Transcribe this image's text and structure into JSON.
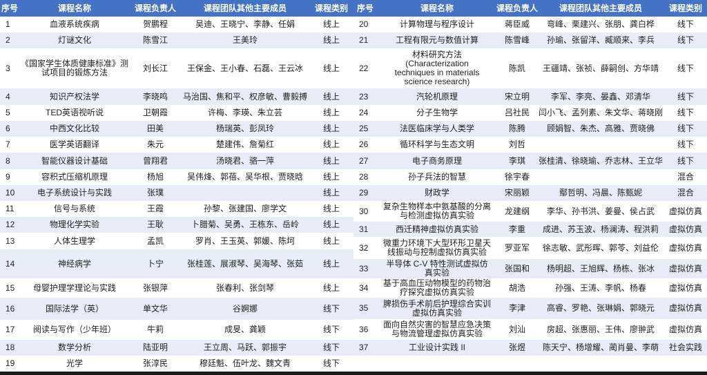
{
  "headers": [
    "序号",
    "课程名称",
    "课程负责人",
    "课程团队其他主要成员",
    "课程类别"
  ],
  "colors": {
    "header_bg": "#4472c4",
    "alt_row": "#e9edf7"
  },
  "left_rows": [
    {
      "no": "1",
      "name": "血液系统疾病",
      "lead": "贺鹏程",
      "members": "吴迪、王晓宁、李静、任娟",
      "type": "线上"
    },
    {
      "no": "2",
      "name": "灯谜文化",
      "lead": "陈雪江",
      "members": "王美玲",
      "type": "线上"
    },
    {
      "no": "3",
      "name": "《国家学生体质健康标准》测\n试项目的锻炼方法",
      "lead": "刘长江",
      "members": "王保金、王小春、石磊、王云冰",
      "type": "线上"
    },
    {
      "no": "4",
      "name": "知识产权法学",
      "lead": "李晓鸣",
      "members": "马治国、焦和平、权彦敏、曹毅搏",
      "type": "线上"
    },
    {
      "no": "5",
      "name": "TED英语视听说",
      "lead": "卫朝霞",
      "members": "许梅、李瑛、朱立芸",
      "type": "线上"
    },
    {
      "no": "6",
      "name": "中西文化比较",
      "lead": "田美",
      "members": "杨瑞英、彭凤玲",
      "type": "线上"
    },
    {
      "no": "7",
      "name": "医学英语翻译",
      "lead": "朱元",
      "members": "楚建伟、詹菊红",
      "type": "线上"
    },
    {
      "no": "8",
      "name": "智能仪器设计基础",
      "lead": "曾翔君",
      "members": "汤晓君、骆一萍",
      "type": "线上"
    },
    {
      "no": "9",
      "name": "容积式压缩机原理",
      "lead": "杨旭",
      "members": "吴伟烽、郭蓓、吴华根、贾晓晗",
      "type": "线上"
    },
    {
      "no": "10",
      "name": "电子系统设计与实践",
      "lead": "张璞",
      "members": "",
      "type": "线上"
    },
    {
      "no": "11",
      "name": "信号与系统",
      "lead": "王霞",
      "members": "孙黎、张建国、廖学文",
      "type": "线上"
    },
    {
      "no": "12",
      "name": "物理化学实验",
      "lead": "王耿",
      "members": "卜腊菊、吴勇、王栋东、岳岭",
      "type": "线上"
    },
    {
      "no": "13",
      "name": "人体生理学",
      "lead": "孟凯",
      "members": "罗肖、王玉英、郭媛、陈坷",
      "type": "线上"
    },
    {
      "no": "14",
      "name": "神经病学",
      "lead": "卜宁",
      "members": "张桂莲、展淑琴、吴海琴、张茹",
      "type": "线上"
    },
    {
      "no": "15",
      "name": "母婴护理学理论与实践",
      "lead": "张银萍",
      "members": "张春利、张剑琴",
      "type": "线上"
    },
    {
      "no": "16",
      "name": "国际法学（英）",
      "lead": "单文华",
      "members": "谷婀娜",
      "type": "线下"
    },
    {
      "no": "17",
      "name": "阅读与写作（少年班）",
      "lead": "牛莉",
      "members": "成旻、龚颖",
      "type": "线下"
    },
    {
      "no": "18",
      "name": "数学分析",
      "lead": "陆亚明",
      "members": "王立周、马跃、郭振宇",
      "type": "线下"
    },
    {
      "no": "19",
      "name": "光学",
      "lead": "张淳民",
      "members": "穆廷魁、伍叶龙、魏文青",
      "type": "线下"
    }
  ],
  "right_rows": [
    {
      "no": "20",
      "name": "计算物理与程序设计",
      "lead": "蒋臣威",
      "members": "弯峰、栗建兴、张朋、龚白桦",
      "type": "线下"
    },
    {
      "no": "21",
      "name": "工程有限元与数值计算",
      "lead": "陈雪峰",
      "members": "孙瑜、张留洋、臧顺来、李兵",
      "type": "线下"
    },
    {
      "no": "22",
      "name": "材料研究方法\n(Characterization\ntechniques in materials\nscience research)",
      "lead": "陈凯",
      "members": "王疆靖、张祯、薛嗣创、方华靖",
      "type": "线下"
    },
    {
      "no": "23",
      "name": "汽轮机原理",
      "lead": "宋立明",
      "members": "李军、李亮、晏鑫、邓清华",
      "type": "线下"
    },
    {
      "no": "24",
      "name": "分子生物学",
      "lead": "吕社民",
      "members": "闫小飞、孟列素、朱文华、蒋晓刚",
      "type": "线下"
    },
    {
      "no": "25",
      "name": "法医临床学与人类学",
      "lead": "陈腾",
      "members": "顾娟智、朱杰、高雅、贾晓佛",
      "type": "线下"
    },
    {
      "no": "26",
      "name": "循环科学与生态文明",
      "lead": "刘哲",
      "members": "",
      "type": "线下"
    },
    {
      "no": "27",
      "name": "电子商务原理",
      "lead": "李琪",
      "members": "张桂清、徐晓瑜、乔志林、王立华",
      "type": "线下"
    },
    {
      "no": "28",
      "name": "孙子兵法的智慧",
      "lead": "徐宇春",
      "members": "",
      "type": "混合"
    },
    {
      "no": "29",
      "name": "财政学",
      "lead": "宋丽颖",
      "members": "鄢哲明、冯晨、陈甄妮",
      "type": "混合"
    },
    {
      "no": "30",
      "name": "复杂生物样本中氨基酸的分离\n与检测虚拟仿真实验",
      "lead": "龙建纲",
      "members": "李华、孙书洪、姜曼、侯占武",
      "type": "虚拟仿真"
    },
    {
      "no": "31",
      "name": "西迁精神虚拟仿真实验",
      "lead": "李重",
      "members": "成进、苏玉波、杨澜涛、程洪莉",
      "type": "虚拟仿真"
    },
    {
      "no": "32",
      "name": "微重力环境下大型环形卫星天\n线振动与控制虚拟仿真实验",
      "lead": "罗亚军",
      "members": "徐志敏、武彤晖、郭苓、刘益伦",
      "type": "虚拟仿真"
    },
    {
      "no": "33",
      "name": "半导体 C-V 特性测试虚拟仿\n真实验",
      "lead": "张国和",
      "members": "杨明超、王旭辉、杨栋、张冰",
      "type": "虚拟仿真"
    },
    {
      "no": "34",
      "name": "基于高血压动物模型的药物治\n疗探究虚拟仿真实验",
      "lead": "胡浩",
      "members": "孙强、王涛、李帆、杨春",
      "type": "虚拟仿真"
    },
    {
      "no": "35",
      "name": "脾损伤手术前后护理综合实训\n虚拟仿真实验",
      "lead": "李津",
      "members": "高睿、罗艳、张琳娟、郭晓元",
      "type": "虚拟仿真"
    },
    {
      "no": "36",
      "name": "面向自然灾害的智慧应急决策\n与物流管理虚拟仿真实验",
      "lead": "刘汕",
      "members": "房超、张惠丽、王伟、廖翀武",
      "type": "虚拟仿真"
    },
    {
      "no": "37",
      "name": "工业设计实践 II",
      "lead": "张煜",
      "members": "陈天宁、杨增耀、蔺肖曼、李萌",
      "type": "社会实践"
    }
  ]
}
